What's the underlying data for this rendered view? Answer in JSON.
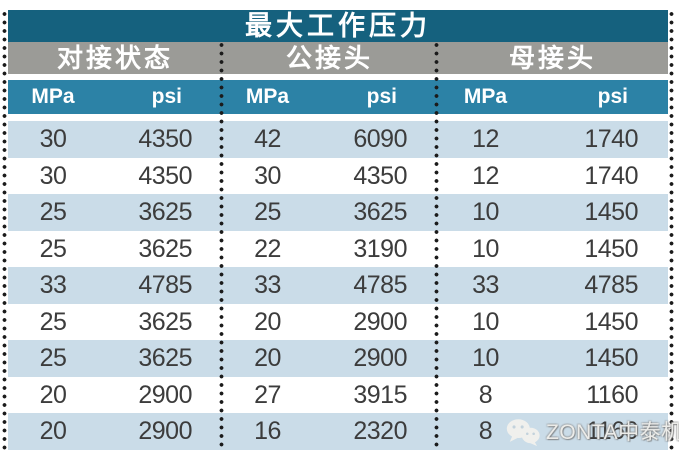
{
  "colors": {
    "title_bg": "#15617E",
    "group_bg": "#9B9B97",
    "unit_bg": "#2C82A6",
    "row_alt_bg": "#CADCE8",
    "row_bg": "#FFFFFF",
    "value_text": "#3C3C3C",
    "header_text": "#FFFFFF",
    "dotted_line": "#1B1B1B"
  },
  "table": {
    "title": "最大工作压力",
    "groups": [
      {
        "label": "对接状态"
      },
      {
        "label": "公接头"
      },
      {
        "label": "母接头"
      }
    ],
    "unit_headers": [
      "MPa",
      "psi",
      "MPa",
      "psi",
      "MPa",
      "psi"
    ],
    "rows": [
      [
        30,
        4350,
        42,
        6090,
        12,
        1740
      ],
      [
        30,
        4350,
        30,
        4350,
        12,
        1740
      ],
      [
        25,
        3625,
        25,
        3625,
        10,
        1450
      ],
      [
        25,
        3625,
        22,
        3190,
        10,
        1450
      ],
      [
        33,
        4785,
        33,
        4785,
        33,
        4785
      ],
      [
        25,
        3625,
        20,
        2900,
        10,
        1450
      ],
      [
        25,
        3625,
        20,
        2900,
        10,
        1450
      ],
      [
        20,
        2900,
        27,
        3915,
        8,
        1160
      ],
      [
        20,
        2900,
        16,
        2320,
        8,
        1160
      ]
    ]
  },
  "watermark": {
    "text": "ZONTA中泰机电",
    "icon": "wechat-icon"
  },
  "chart_data": {
    "type": "table",
    "title": "最大工作压力",
    "column_groups": [
      "对接状态",
      "公接头",
      "母接头"
    ],
    "columns": [
      "对接状态 MPa",
      "对接状态 psi",
      "公接头 MPa",
      "公接头 psi",
      "母接头 MPa",
      "母接头 psi"
    ],
    "rows": [
      [
        30,
        4350,
        42,
        6090,
        12,
        1740
      ],
      [
        30,
        4350,
        30,
        4350,
        12,
        1740
      ],
      [
        25,
        3625,
        25,
        3625,
        10,
        1450
      ],
      [
        25,
        3625,
        22,
        3190,
        10,
        1450
      ],
      [
        33,
        4785,
        33,
        4785,
        33,
        4785
      ],
      [
        25,
        3625,
        20,
        2900,
        10,
        1450
      ],
      [
        25,
        3625,
        20,
        2900,
        10,
        1450
      ],
      [
        20,
        2900,
        27,
        3915,
        8,
        1160
      ],
      [
        20,
        2900,
        16,
        2320,
        8,
        1160
      ]
    ],
    "layout_hints": {
      "row_striping": "alternating light-blue/white starting light-blue",
      "section_separators": "vertical black dotted lines",
      "last_cell_covered_by_watermark": true
    }
  }
}
